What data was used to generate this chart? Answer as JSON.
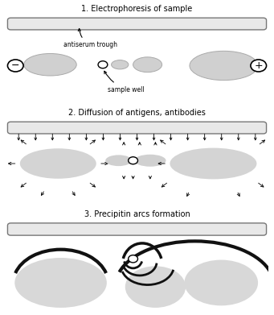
{
  "title1": "1. Electrophoresis of sample",
  "title2": "2. Diffusion of antigens, antibodies",
  "title3": "3. Precipitin arcs formation",
  "label_antiserum": "antiserum trough",
  "label_sample_well": "sample well",
  "bg_color": "#ffffff",
  "gel_color": "#e8e8e8",
  "ellipse_fill": "#d0d0d0",
  "arc_color": "#111111",
  "well_color": "#ffffff",
  "fig_width": 3.41,
  "fig_height": 3.91
}
